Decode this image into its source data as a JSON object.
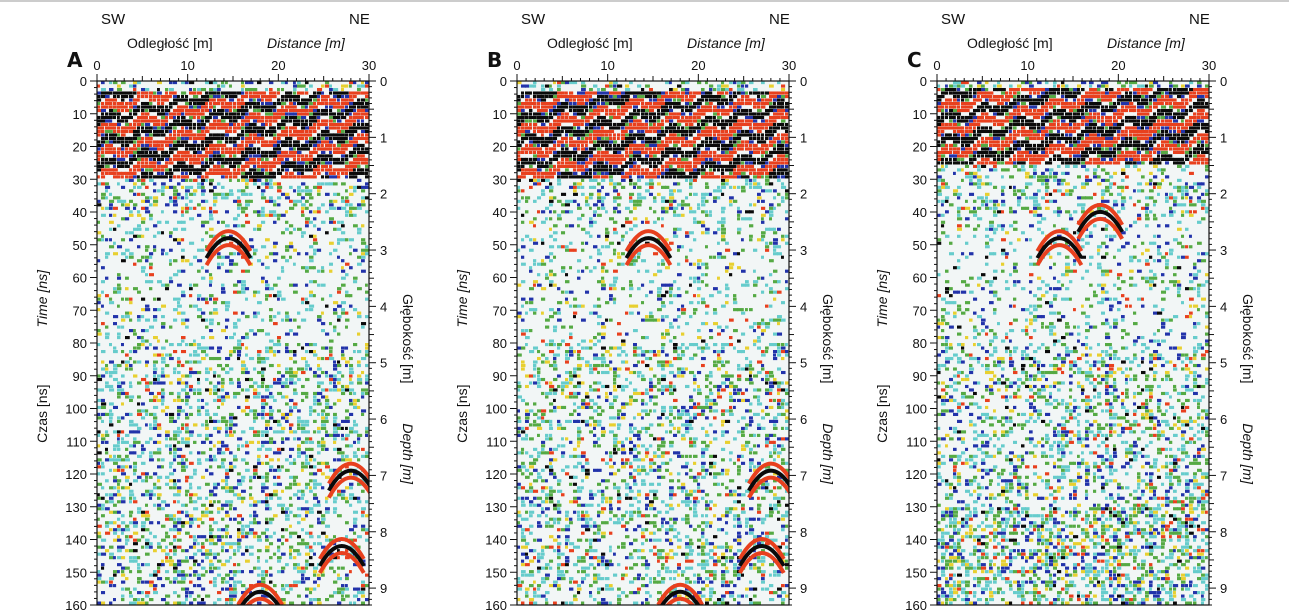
{
  "figure": {
    "colors": {
      "strong_positive": "#e8401e",
      "strong_negative": "#0a0a0a",
      "medium": "#2233aa",
      "weak": "#55aa44",
      "faint": "#66cccc",
      "accent": "#e8d030",
      "background": "#f2f6f6"
    }
  },
  "chart_data": [
    {
      "type": "heatmap",
      "panel_label": "A",
      "direction_left": "SW",
      "direction_right": "NE",
      "xlabel_pl": "Odległość [m]",
      "xlabel_en": "Distance [m]",
      "ylabel_left_pl": "Czas [ns]",
      "ylabel_left_en": "Time [ns]",
      "ylabel_right_pl": "Głębokość [m]",
      "ylabel_right_en": "Depth [m]",
      "x_ticks": [
        "0",
        "10",
        "20",
        "30"
      ],
      "xlim": [
        0,
        30
      ],
      "time_ticks": [
        "0",
        "10",
        "20",
        "30",
        "40",
        "50",
        "60",
        "70",
        "80",
        "90",
        "100",
        "110",
        "120",
        "130",
        "140",
        "150",
        "160"
      ],
      "ylim_time_ns": [
        0,
        160
      ],
      "depth_ticks": [
        "0",
        "1",
        "2",
        "3",
        "4",
        "5",
        "6",
        "7",
        "8",
        "9"
      ],
      "ylim_depth_m": [
        0,
        9.3
      ],
      "features": [
        {
          "kind": "strong_surface_band",
          "time_from": 3,
          "time_to": 30
        },
        {
          "kind": "hyperbola",
          "x": 14.5,
          "time": 44
        },
        {
          "kind": "hyperbola",
          "x": 28,
          "time": 115
        },
        {
          "kind": "hyperbola",
          "x": 27,
          "time": 138
        },
        {
          "kind": "hyperbola",
          "x": 18,
          "time": 152
        }
      ]
    },
    {
      "type": "heatmap",
      "panel_label": "B",
      "direction_left": "SW",
      "direction_right": "NE",
      "xlabel_pl": "Odległość [m]",
      "xlabel_en": "Distance [m]",
      "ylabel_left_pl": "Czas [ns]",
      "ylabel_left_en": "Time [ns]",
      "ylabel_right_pl": "Głębokość [m]",
      "ylabel_right_en": "Depth [m]",
      "x_ticks": [
        "0",
        "10",
        "20",
        "30"
      ],
      "xlim": [
        0,
        30
      ],
      "time_ticks": [
        "0",
        "10",
        "20",
        "30",
        "40",
        "50",
        "60",
        "70",
        "80",
        "90",
        "100",
        "110",
        "120",
        "130",
        "140",
        "150",
        "160"
      ],
      "ylim_time_ns": [
        0,
        160
      ],
      "depth_ticks": [
        "0",
        "1",
        "2",
        "3",
        "4",
        "5",
        "6",
        "7",
        "8",
        "9"
      ],
      "ylim_depth_m": [
        0,
        9.3
      ],
      "features": [
        {
          "kind": "strong_surface_band",
          "time_from": 3,
          "time_to": 30
        },
        {
          "kind": "hyperbola",
          "x": 14.5,
          "time": 44
        },
        {
          "kind": "hyperbola",
          "x": 28,
          "time": 115
        },
        {
          "kind": "hyperbola",
          "x": 27,
          "time": 138
        },
        {
          "kind": "hyperbola",
          "x": 18,
          "time": 152
        }
      ]
    },
    {
      "type": "heatmap",
      "panel_label": "C",
      "direction_left": "SW",
      "direction_right": "NE",
      "xlabel_pl": "Odległość [m]",
      "xlabel_en": "Distance [m]",
      "ylabel_left_pl": "Czas [ns]",
      "ylabel_left_en": "Time [ns]",
      "ylabel_right_pl": "Głębokość [m]",
      "ylabel_right_en": "Depth [m]",
      "x_ticks": [
        "0",
        "10",
        "20",
        "30"
      ],
      "xlim": [
        0,
        30
      ],
      "time_ticks": [
        "0",
        "10",
        "20",
        "30",
        "40",
        "50",
        "60",
        "70",
        "80",
        "90",
        "100",
        "110",
        "120",
        "130",
        "140",
        "150",
        "160"
      ],
      "ylim_time_ns": [
        0,
        160
      ],
      "depth_ticks": [
        "0",
        "1",
        "2",
        "3",
        "4",
        "5",
        "6",
        "7",
        "8",
        "9"
      ],
      "ylim_depth_m": [
        0,
        9.3
      ],
      "features": [
        {
          "kind": "strong_surface_band",
          "time_from": 2,
          "time_to": 26
        },
        {
          "kind": "hyperbola",
          "x": 13.5,
          "time": 44
        },
        {
          "kind": "hyperbola",
          "x": 18,
          "time": 36
        },
        {
          "kind": "noise_band",
          "time_from": 130,
          "time_to": 160
        }
      ]
    }
  ]
}
